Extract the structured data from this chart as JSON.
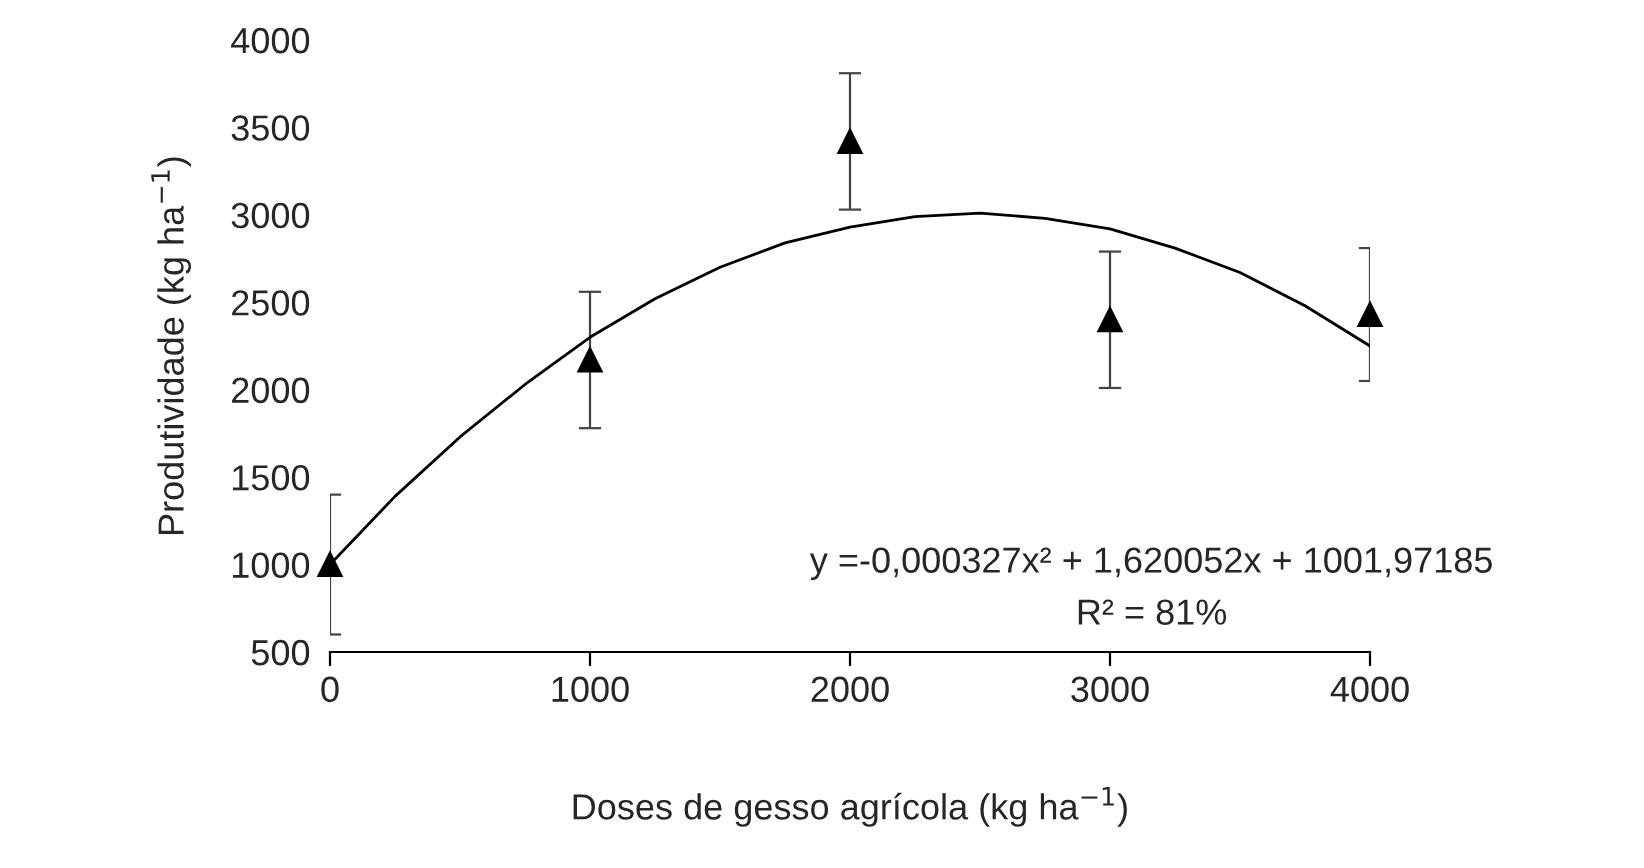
{
  "chart_data": {
    "type": "scatter",
    "xlabel": "Doses de gesso agrícola (kg ha$^{−1}$)",
    "ylabel": "Produtividade (kg ha$^{−1}$)",
    "x": [
      0,
      1000,
      2000,
      3000,
      4000
    ],
    "series": [
      {
        "color": "#000000",
        "marker": "triangle",
        "values": [
          1000,
          2170,
          3420,
          2400,
          2430
        ],
        "errors": [
          400,
          390,
          390,
          390,
          380
        ]
      },
      {
        "type": "line",
        "color": "#000000",
        "marker": "none",
        "line_style": "solid",
        "x": [
          0,
          250,
          500,
          750,
          1000,
          1250,
          1500,
          1750,
          2000,
          2250,
          2500,
          2750,
          3000,
          3250,
          3500,
          3750,
          4000
        ],
        "values": [
          1000,
          1390,
          1730,
          2030,
          2300,
          2520,
          2700,
          2840,
          2930,
          2990,
          3010,
          2980,
          2920,
          2810,
          2670,
          2480,
          2250
        ]
      }
    ],
    "xlim": [
      0,
      4000
    ],
    "xticks": [
      0,
      1000,
      2000,
      3000,
      4000
    ],
    "ylim": [
      500,
      4000
    ],
    "yticks": [
      500,
      1000,
      1500,
      2000,
      2500,
      3000,
      3500,
      4000
    ],
    "annotations": [
      "y =-0,000327x² + 1,620052x + 1001,97185",
      "R² = 81%"
    ],
    "grid": false,
    "legend": false
  }
}
